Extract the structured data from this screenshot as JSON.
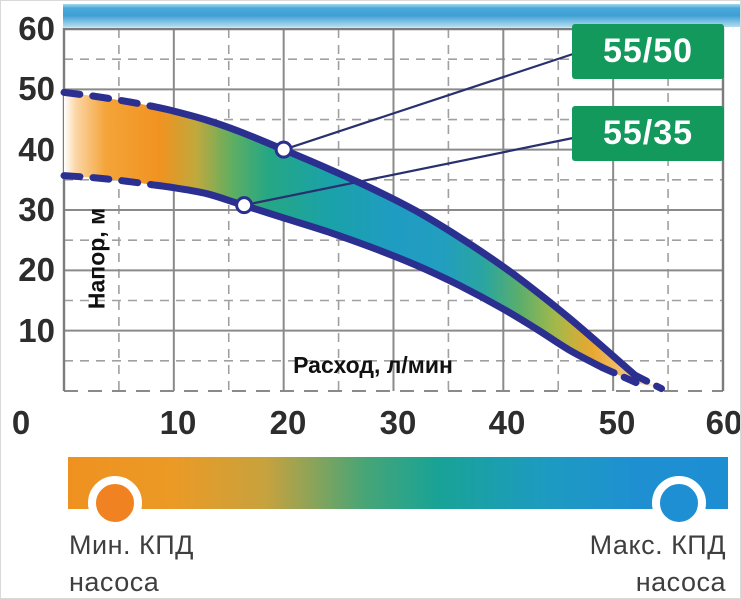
{
  "chart": {
    "ylabel": "Напор, м",
    "xlabel": "Расход, л/мин",
    "x_ticks": [
      "0",
      "10",
      "20",
      "30",
      "40",
      "50",
      "60"
    ],
    "y_ticks": [
      "60",
      "50",
      "40",
      "30",
      "20",
      "10"
    ],
    "badges": [
      {
        "label": "55/50"
      },
      {
        "label": "55/35"
      }
    ]
  },
  "legend": {
    "min": {
      "line1": "Мин. КПД",
      "line2": "насоса"
    },
    "max": {
      "line1": "Макс. КПД",
      "line2": "насоса"
    }
  },
  "colors": {
    "curve": "#2b2f8f",
    "leader": "#28306e",
    "badge_green": "#12995b",
    "grid_major": "#8a8a8a",
    "grid_minor": "#a0a0a0",
    "frame": "#7c7c7c",
    "marker_min_efficiency": "#f08221",
    "marker_max_efficiency": "#1e8fd2",
    "bar_orange": "#ef9120",
    "bar_teal": "#18a396",
    "bar_blue": "#1e8ed2",
    "text": "#3f3f3f"
  },
  "chart_data": {
    "type": "line",
    "title": "Pump head vs flow performance band for models 55/50 and 55/35",
    "xlabel": "Расход, л/мин",
    "ylabel": "Напор, м",
    "xlim": [
      0,
      60
    ],
    "ylim": [
      0,
      60
    ],
    "x_tick_values": [
      0,
      10,
      20,
      30,
      40,
      50,
      60
    ],
    "y_tick_values": [
      10,
      20,
      30,
      40,
      50,
      60
    ],
    "grid": true,
    "series": [
      {
        "name": "55/50",
        "dash_left": [
          [
            0,
            49.5
          ],
          [
            3,
            48.8
          ],
          [
            6,
            47.9
          ],
          [
            8,
            47.2
          ]
        ],
        "solid": [
          [
            8,
            47.2
          ],
          [
            10,
            46.4
          ],
          [
            13,
            44.9
          ],
          [
            16,
            43.0
          ],
          [
            20,
            40.0
          ],
          [
            24,
            36.9
          ],
          [
            28,
            33.6
          ],
          [
            32,
            29.9
          ],
          [
            36,
            25.5
          ],
          [
            40,
            20.6
          ],
          [
            43,
            16.5
          ],
          [
            46,
            12.1
          ],
          [
            49,
            7.4
          ],
          [
            52,
            2.6
          ]
        ],
        "dash_right": [
          [
            52,
            2.6
          ],
          [
            54.4,
            0.4
          ]
        ]
      },
      {
        "name": "55/35",
        "dash_left": [
          [
            0,
            35.7
          ],
          [
            3,
            35.3
          ],
          [
            6,
            34.7
          ],
          [
            8,
            34.2
          ]
        ],
        "solid": [
          [
            8,
            34.2
          ],
          [
            10,
            33.7
          ],
          [
            13,
            32.7
          ],
          [
            16,
            31.0
          ],
          [
            20,
            28.7
          ],
          [
            24,
            26.4
          ],
          [
            28,
            23.8
          ],
          [
            32,
            20.9
          ],
          [
            36,
            17.5
          ],
          [
            40,
            13.6
          ],
          [
            43,
            10.3
          ],
          [
            46,
            6.8
          ],
          [
            49,
            3.9
          ]
        ],
        "dash_right": [
          [
            49,
            3.9
          ],
          [
            52.2,
            1.3
          ]
        ]
      }
    ],
    "markers": [
      {
        "series": "55/50",
        "x": 20,
        "y": 40
      },
      {
        "series": "55/35",
        "x": 16.4,
        "y": 30.8
      }
    ],
    "efficiency_scale": {
      "left_label": "Мин. КПД насоса",
      "right_label": "Макс. КПД насоса",
      "gradient": [
        "#ef9120",
        "#18a396",
        "#1e8ed2"
      ]
    }
  }
}
